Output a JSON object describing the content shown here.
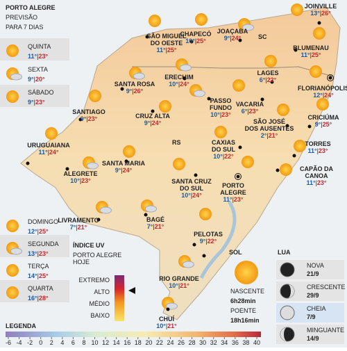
{
  "header": {
    "title": "PORTO ALEGRE",
    "subtitle": [
      "PREVISÃO",
      "PARA 7 DIAS"
    ]
  },
  "separator": "|",
  "days": [
    {
      "day": "QUINTA",
      "min": "11°",
      "max": "23°"
    },
    {
      "day": "SEXTA",
      "min": "9°",
      "max": "20°"
    },
    {
      "day": "SÁBADO",
      "min": "9°",
      "max": "23°"
    },
    {
      "day": "DOMINGO",
      "min": "12°",
      "max": "25°"
    },
    {
      "day": "SEGUNDA",
      "min": "13°",
      "max": "23°"
    },
    {
      "day": "TERÇA",
      "min": "14°",
      "max": "25°"
    },
    {
      "day": "QUARTA",
      "min": "16°",
      "max": "28°"
    }
  ],
  "states": [
    "SC",
    "RS"
  ],
  "cities": [
    {
      "name": [
        "JOINVILLE"
      ],
      "min": "13°",
      "max": "26°"
    },
    {
      "name": [
        "SÃO MIGUEL",
        "DO OESTE"
      ],
      "min": "11°",
      "max": "25°"
    },
    {
      "name": [
        "CHAPECÓ"
      ],
      "min": "10°",
      "max": "25°"
    },
    {
      "name": [
        "JOAÇABA"
      ],
      "min": "9°",
      "max": "24°"
    },
    {
      "name": [
        "BLUMENAU"
      ],
      "min": "11°",
      "max": "25°"
    },
    {
      "name": [
        "SANTA ROSA"
      ],
      "min": "9°",
      "max": "26°"
    },
    {
      "name": [
        "ERECHIM"
      ],
      "min": "10°",
      "max": "24°"
    },
    {
      "name": [
        "LAGES"
      ],
      "min": "6°",
      "max": "22°"
    },
    {
      "name": [
        "FLORIANÓPOLIS"
      ],
      "min": "12°",
      "max": "24°"
    },
    {
      "name": [
        "SANTIAGO"
      ],
      "min": "9°",
      "max": "23°"
    },
    {
      "name": [
        "CRUZ ALTA"
      ],
      "min": "9°",
      "max": "24°"
    },
    {
      "name": [
        "PASSO",
        "FUNDO"
      ],
      "min": "10°",
      "max": "23°"
    },
    {
      "name": [
        "VACARIA"
      ],
      "min": "6°",
      "max": "23°"
    },
    {
      "name": [
        "SÃO JOSÉ",
        "DOS AUSENTES"
      ],
      "min": "2°",
      "max": "21°"
    },
    {
      "name": [
        "CRICIÚMA"
      ],
      "min": "9°",
      "max": "25°"
    },
    {
      "name": [
        "URUGUAIANA"
      ],
      "min": "11°",
      "max": "24°"
    },
    {
      "name": [
        "TORRES"
      ],
      "min": "11°",
      "max": "23°"
    },
    {
      "name": [
        "CAXIAS",
        "DO SUL"
      ],
      "min": "10°",
      "max": "22°"
    },
    {
      "name": [
        "SANTA MARIA"
      ],
      "min": "9°",
      "max": "24°"
    },
    {
      "name": [
        "ALEGRETE"
      ],
      "min": "10°",
      "max": "23°"
    },
    {
      "name": [
        "CAPÃO DA",
        "CANOA"
      ],
      "min": "11°",
      "max": "23°"
    },
    {
      "name": [
        "SANTA CRUZ",
        "DO SUL"
      ],
      "min": "10°",
      "max": "24°"
    },
    {
      "name": [
        "PORTO",
        "ALEGRE"
      ],
      "min": "11°",
      "max": "23°"
    },
    {
      "name": [
        "LIVRAMENTO"
      ],
      "min": "7°",
      "max": "21°"
    },
    {
      "name": [
        "BAGÉ"
      ],
      "min": "7°",
      "max": "21°"
    },
    {
      "name": [
        "PELOTAS"
      ],
      "min": "9°",
      "max": "22°"
    },
    {
      "name": [
        "RIO GRANDE"
      ],
      "min": "10°",
      "max": "21°"
    },
    {
      "name": [
        "CHUÍ"
      ],
      "min": "10°",
      "max": "21°"
    }
  ],
  "uv": {
    "title": "ÍNDICE UV",
    "subtitle": [
      "PORTO ALEGRE",
      "HOJE"
    ],
    "levels": [
      "EXTREMO",
      "ALTO",
      "MÉDIO",
      "BAIXO"
    ]
  },
  "sun": {
    "title": "SOL",
    "rise_label": "NASCENTE",
    "rise": "6h28min",
    "set_label": "POENTE",
    "set": "18h16min"
  },
  "moon": {
    "title": "LUA",
    "phases": [
      {
        "name": "NOVA",
        "date": "21/9"
      },
      {
        "name": "CRESCENTE",
        "date": "29/9"
      },
      {
        "name": "CHEIA",
        "date": "7/9"
      },
      {
        "name": "MINGUANTE",
        "date": "14/9"
      }
    ]
  },
  "legend": {
    "title": "LEGENDA",
    "ticks": [
      -6,
      -4,
      -2,
      0,
      2,
      4,
      6,
      8,
      10,
      12,
      14,
      16,
      18,
      20,
      22,
      24,
      26,
      28,
      30,
      32,
      34,
      36,
      38,
      40
    ]
  }
}
